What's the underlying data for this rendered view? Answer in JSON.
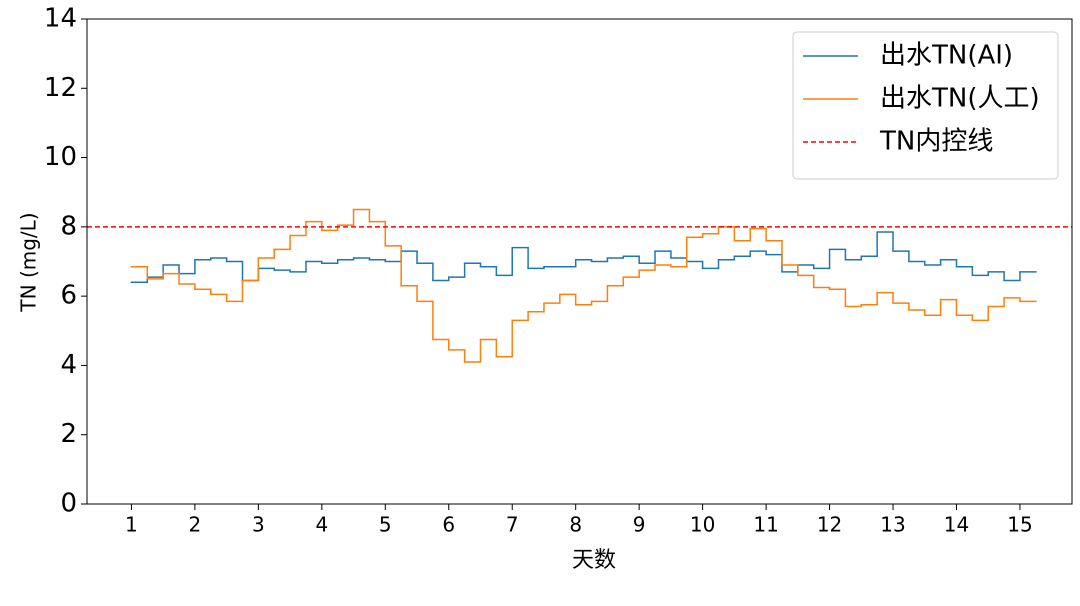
{
  "chart_data": {
    "type": "line",
    "step": "post",
    "xlabel": "天数",
    "ylabel": "TN (mg/L)",
    "x": [
      1,
      1.25,
      1.5,
      1.75,
      2,
      2.25,
      2.5,
      2.75,
      3,
      3.25,
      3.5,
      3.75,
      4,
      4.25,
      4.5,
      4.75,
      5,
      5.25,
      5.5,
      5.75,
      6,
      6.25,
      6.5,
      6.75,
      7,
      7.25,
      7.5,
      7.75,
      8,
      8.25,
      8.5,
      8.75,
      9,
      9.25,
      9.5,
      9.75,
      10,
      10.25,
      10.5,
      10.75,
      11,
      11.25,
      11.5,
      11.75,
      12,
      12.25,
      12.5,
      12.75,
      13,
      13.25,
      13.5,
      13.75,
      14,
      14.25,
      14.5,
      14.75,
      15
    ],
    "series": [
      {
        "name": "出水TN(AI)",
        "color": "#1f77b4",
        "values": [
          6.4,
          6.55,
          6.9,
          6.65,
          7.05,
          7.1,
          7.0,
          6.45,
          6.8,
          6.75,
          6.7,
          7.0,
          6.95,
          7.05,
          7.1,
          7.05,
          7.0,
          7.3,
          6.95,
          6.45,
          6.55,
          6.95,
          6.85,
          6.6,
          7.4,
          6.8,
          6.85,
          6.85,
          7.05,
          7.0,
          7.1,
          7.15,
          6.95,
          7.3,
          7.1,
          7.0,
          6.8,
          7.05,
          7.15,
          7.3,
          7.2,
          6.7,
          6.9,
          6.8,
          7.35,
          7.05,
          7.15,
          7.85,
          7.3,
          7.0,
          6.9,
          7.05,
          6.85,
          6.6,
          6.7,
          6.45,
          6.7
        ]
      },
      {
        "name": "出水TN(人工)",
        "color": "#ff7f0e",
        "values": [
          6.85,
          6.5,
          6.65,
          6.35,
          6.2,
          6.05,
          5.85,
          6.45,
          7.1,
          7.35,
          7.75,
          8.15,
          7.9,
          8.05,
          8.5,
          8.15,
          7.45,
          6.3,
          5.85,
          4.75,
          4.45,
          4.1,
          4.75,
          4.25,
          5.3,
          5.55,
          5.8,
          6.05,
          5.75,
          5.85,
          6.3,
          6.55,
          6.75,
          6.9,
          6.85,
          7.7,
          7.8,
          8.0,
          7.6,
          7.95,
          7.6,
          6.9,
          6.6,
          6.25,
          6.2,
          5.7,
          5.75,
          6.1,
          5.8,
          5.6,
          5.45,
          5.9,
          5.45,
          5.3,
          5.7,
          5.95,
          5.85
        ]
      }
    ],
    "hline": {
      "name": "TN内控线",
      "value": 8,
      "color": "#ff0000",
      "dashed": true
    },
    "xlim": [
      0.3,
      15.82
    ],
    "ylim": [
      0,
      14
    ],
    "xticks": [
      1,
      2,
      3,
      4,
      5,
      6,
      7,
      8,
      9,
      10,
      11,
      12,
      13,
      14,
      15
    ],
    "yticks": [
      0,
      2,
      4,
      6,
      8,
      10,
      12,
      14
    ],
    "legend": "upper right"
  }
}
